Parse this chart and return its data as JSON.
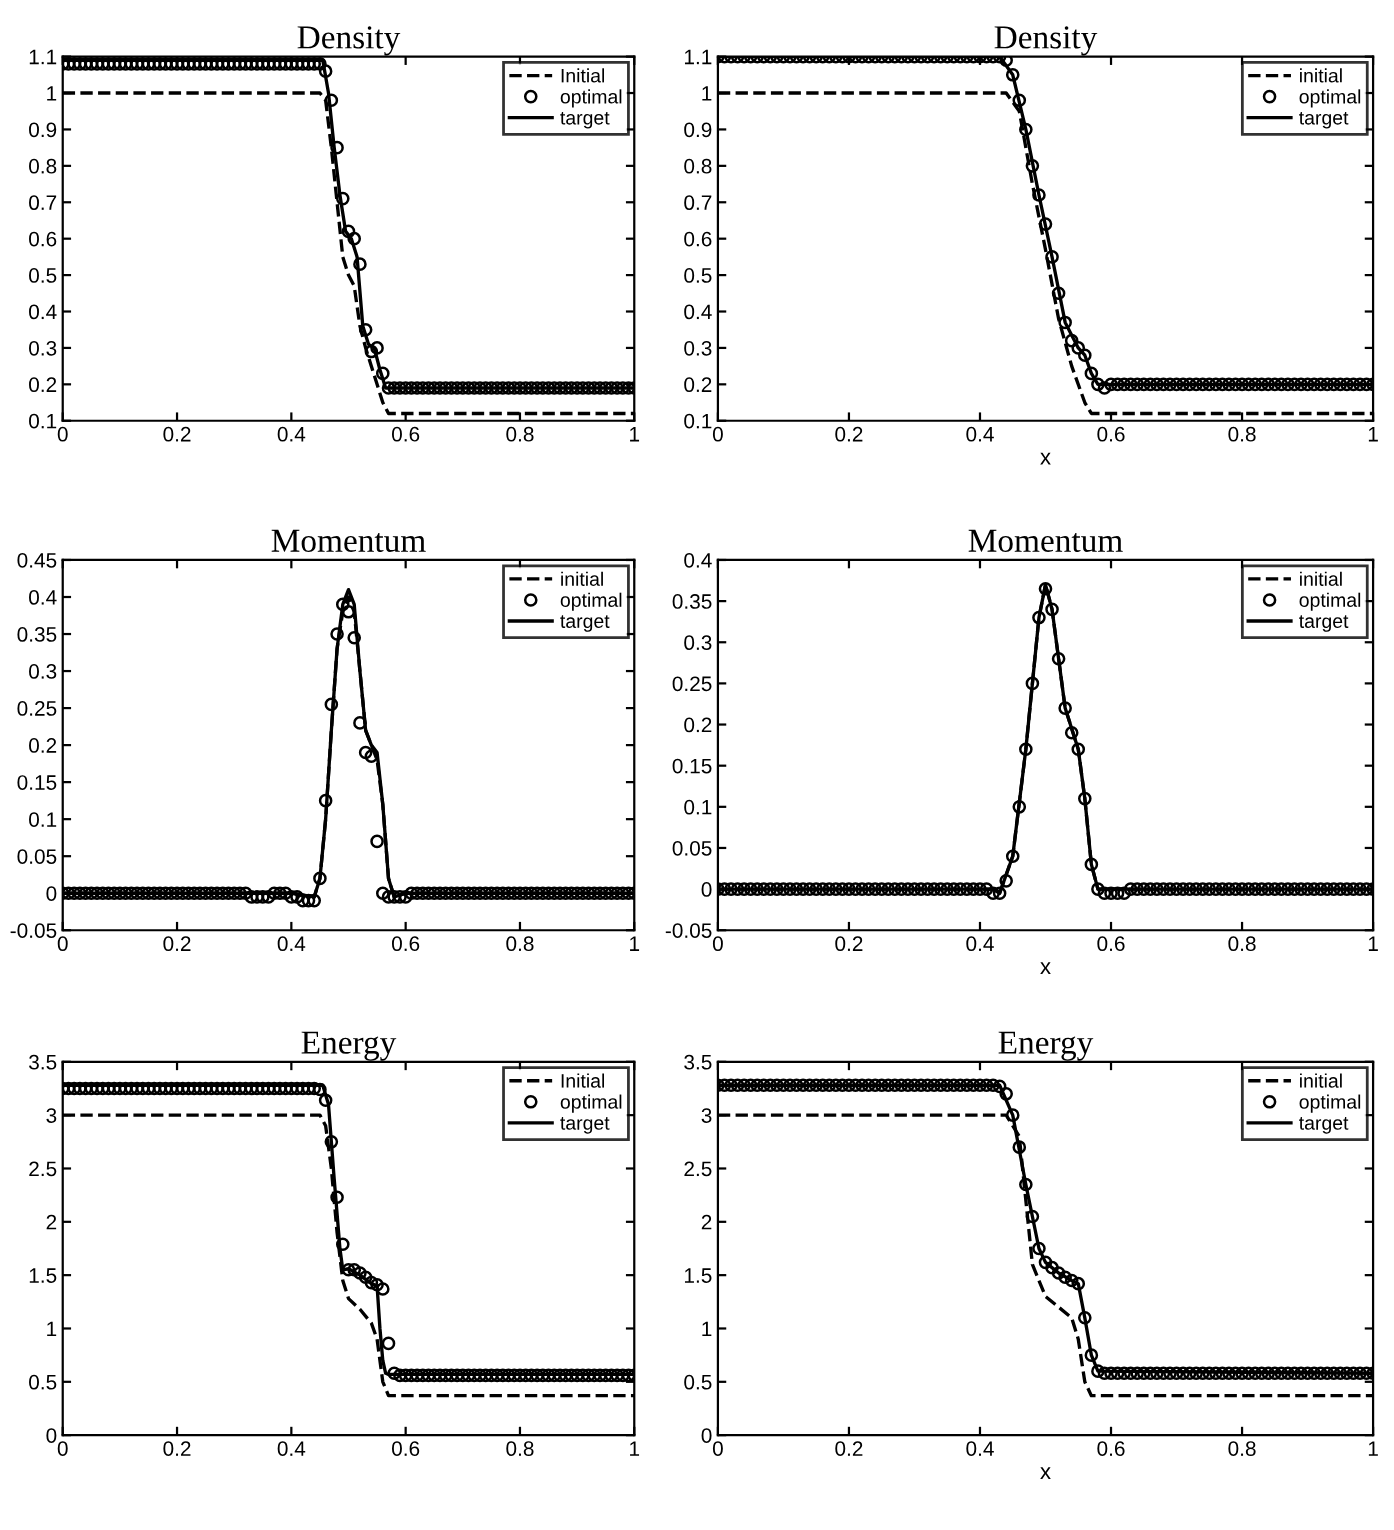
{
  "chart_data": [
    {
      "type": "line",
      "title": "Density",
      "xlim": [
        0,
        1
      ],
      "ylim": [
        0.1,
        1.1
      ],
      "xticks": [
        0,
        0.2,
        0.4,
        0.6,
        0.8,
        1
      ],
      "yticks": [
        0.1,
        0.2,
        0.3,
        0.4,
        0.5,
        0.6,
        0.7,
        0.8,
        0.9,
        1,
        1.1
      ],
      "legend": "top right",
      "grid": false,
      "x": [
        0,
        0.01,
        0.02,
        0.03,
        0.04,
        0.05,
        0.06,
        0.07,
        0.08,
        0.09,
        0.1,
        0.11,
        0.12,
        0.13,
        0.14,
        0.15,
        0.16,
        0.17,
        0.18,
        0.19,
        0.2,
        0.21,
        0.22,
        0.23,
        0.24,
        0.25,
        0.26,
        0.27,
        0.28,
        0.29,
        0.3,
        0.31,
        0.32,
        0.33,
        0.34,
        0.35,
        0.36,
        0.37,
        0.38,
        0.39,
        0.4,
        0.41,
        0.42,
        0.43,
        0.44,
        0.45,
        0.46,
        0.47,
        0.48,
        0.49,
        0.5,
        0.51,
        0.52,
        0.53,
        0.54,
        0.55,
        0.56,
        0.57,
        0.58,
        0.59,
        0.6,
        0.61,
        0.62,
        0.63,
        0.64,
        0.65,
        0.66,
        0.67,
        0.68,
        0.69,
        0.7,
        0.71,
        0.72,
        0.73,
        0.74,
        0.75,
        0.76,
        0.77,
        0.78,
        0.79,
        0.8,
        0.81,
        0.82,
        0.83,
        0.84,
        0.85,
        0.86,
        0.87,
        0.88,
        0.89,
        0.9,
        0.91,
        0.92,
        0.93,
        0.94,
        0.95,
        0.96,
        0.97,
        0.98,
        0.99,
        1
      ],
      "series": [
        {
          "name": "Initial",
          "color": "#000000",
          "line_style": "dashed",
          "x": [
            0,
            0.45,
            0.46,
            0.47,
            0.48,
            0.49,
            0.5,
            0.51,
            0.52,
            0.53,
            0.54,
            0.55,
            0.56,
            0.57,
            1
          ],
          "values": [
            1,
            1,
            0.98,
            0.85,
            0.7,
            0.55,
            0.5,
            0.47,
            0.36,
            0.3,
            0.25,
            0.2,
            0.15,
            0.12,
            0.12
          ]
        },
        {
          "name": "optimal",
          "color": "#000000",
          "type": "scatter",
          "marker": "circle",
          "values": [
            1.08,
            1.08,
            1.08,
            1.08,
            1.08,
            1.08,
            1.08,
            1.08,
            1.08,
            1.08,
            1.08,
            1.08,
            1.08,
            1.08,
            1.08,
            1.08,
            1.08,
            1.08,
            1.08,
            1.08,
            1.08,
            1.08,
            1.08,
            1.08,
            1.08,
            1.08,
            1.08,
            1.08,
            1.08,
            1.08,
            1.08,
            1.08,
            1.08,
            1.08,
            1.08,
            1.08,
            1.08,
            1.08,
            1.08,
            1.08,
            1.08,
            1.08,
            1.08,
            1.08,
            1.08,
            1.08,
            1.06,
            0.98,
            0.85,
            0.71,
            0.62,
            0.6,
            0.53,
            0.35,
            0.29,
            0.3,
            0.23,
            0.19,
            0.19,
            0.19,
            0.19,
            0.19,
            0.19,
            0.19,
            0.19,
            0.19,
            0.19,
            0.19,
            0.19,
            0.19,
            0.19,
            0.19,
            0.19,
            0.19,
            0.19,
            0.19,
            0.19,
            0.19,
            0.19,
            0.19,
            0.19,
            0.19,
            0.19,
            0.19,
            0.19,
            0.19,
            0.19,
            0.19,
            0.19,
            0.19,
            0.19,
            0.19,
            0.19,
            0.19,
            0.19,
            0.19,
            0.19,
            0.19,
            0.19,
            0.19,
            0.19
          ]
        },
        {
          "name": "target",
          "color": "#000000",
          "line_style": "solid",
          "x": [
            0,
            0.455,
            0.465,
            0.475,
            0.485,
            0.495,
            0.505,
            0.515,
            0.525,
            0.535,
            0.545,
            0.555,
            0.565,
            0.575,
            1
          ],
          "values": [
            1.09,
            1.09,
            1,
            0.85,
            0.72,
            0.62,
            0.6,
            0.55,
            0.36,
            0.31,
            0.3,
            0.24,
            0.19,
            0.19,
            0.19
          ]
        }
      ]
    },
    {
      "type": "line",
      "title": "Density",
      "xlabel": "x",
      "xlim": [
        0,
        1
      ],
      "ylim": [
        0.1,
        1.1
      ],
      "xticks": [
        0,
        0.2,
        0.4,
        0.6,
        0.8,
        1
      ],
      "yticks": [
        0.1,
        0.2,
        0.3,
        0.4,
        0.5,
        0.6,
        0.7,
        0.8,
        0.9,
        1,
        1.1
      ],
      "legend": "top right",
      "grid": false,
      "x": [
        0,
        0.01,
        0.02,
        0.03,
        0.04,
        0.05,
        0.06,
        0.07,
        0.08,
        0.09,
        0.1,
        0.11,
        0.12,
        0.13,
        0.14,
        0.15,
        0.16,
        0.17,
        0.18,
        0.19,
        0.2,
        0.21,
        0.22,
        0.23,
        0.24,
        0.25,
        0.26,
        0.27,
        0.28,
        0.29,
        0.3,
        0.31,
        0.32,
        0.33,
        0.34,
        0.35,
        0.36,
        0.37,
        0.38,
        0.39,
        0.4,
        0.41,
        0.42,
        0.43,
        0.44,
        0.45,
        0.46,
        0.47,
        0.48,
        0.49,
        0.5,
        0.51,
        0.52,
        0.53,
        0.54,
        0.55,
        0.56,
        0.57,
        0.58,
        0.59,
        0.6,
        0.61,
        0.62,
        0.63,
        0.64,
        0.65,
        0.66,
        0.67,
        0.68,
        0.69,
        0.7,
        0.71,
        0.72,
        0.73,
        0.74,
        0.75,
        0.76,
        0.77,
        0.78,
        0.79,
        0.8,
        0.81,
        0.82,
        0.83,
        0.84,
        0.85,
        0.86,
        0.87,
        0.88,
        0.89,
        0.9,
        0.91,
        0.92,
        0.93,
        0.94,
        0.95,
        0.96,
        0.97,
        0.98,
        0.99,
        1
      ],
      "series": [
        {
          "name": "initial",
          "color": "#000000",
          "line_style": "dashed",
          "x": [
            0,
            0.44,
            0.46,
            0.48,
            0.5,
            0.52,
            0.54,
            0.56,
            0.57,
            1
          ],
          "values": [
            1,
            1,
            0.95,
            0.75,
            0.57,
            0.38,
            0.25,
            0.15,
            0.12,
            0.12
          ]
        },
        {
          "name": "optimal",
          "color": "#000000",
          "type": "scatter",
          "marker": "circle",
          "values": [
            1.1,
            1.1,
            1.1,
            1.1,
            1.1,
            1.1,
            1.1,
            1.1,
            1.1,
            1.1,
            1.1,
            1.1,
            1.1,
            1.1,
            1.1,
            1.1,
            1.1,
            1.1,
            1.1,
            1.1,
            1.1,
            1.1,
            1.1,
            1.1,
            1.1,
            1.1,
            1.1,
            1.1,
            1.1,
            1.1,
            1.1,
            1.1,
            1.1,
            1.1,
            1.1,
            1.1,
            1.1,
            1.1,
            1.1,
            1.1,
            1.1,
            1.1,
            1.1,
            1.1,
            1.09,
            1.05,
            0.98,
            0.9,
            0.8,
            0.72,
            0.64,
            0.55,
            0.45,
            0.37,
            0.32,
            0.3,
            0.28,
            0.23,
            0.2,
            0.19,
            0.2,
            0.2,
            0.2,
            0.2,
            0.2,
            0.2,
            0.2,
            0.2,
            0.2,
            0.2,
            0.2,
            0.2,
            0.2,
            0.2,
            0.2,
            0.2,
            0.2,
            0.2,
            0.2,
            0.2,
            0.2,
            0.2,
            0.2,
            0.2,
            0.2,
            0.2,
            0.2,
            0.2,
            0.2,
            0.2,
            0.2,
            0.2,
            0.2,
            0.2,
            0.2,
            0.2,
            0.2,
            0.2,
            0.2,
            0.2,
            0.2
          ]
        },
        {
          "name": "target",
          "color": "#000000",
          "line_style": "solid",
          "x": [
            0,
            0.43,
            0.45,
            0.47,
            0.49,
            0.51,
            0.53,
            0.55,
            0.56,
            0.57,
            0.58,
            0.6,
            1
          ],
          "values": [
            1.1,
            1.1,
            1.05,
            0.9,
            0.72,
            0.55,
            0.37,
            0.3,
            0.28,
            0.23,
            0.2,
            0.2,
            0.2
          ]
        }
      ]
    },
    {
      "type": "line",
      "title": "Momentum",
      "xlim": [
        0,
        1
      ],
      "ylim": [
        -0.05,
        0.45
      ],
      "xticks": [
        0,
        0.2,
        0.4,
        0.6,
        0.8,
        1
      ],
      "yticks": [
        -0.05,
        0,
        0.05,
        0.1,
        0.15,
        0.2,
        0.25,
        0.3,
        0.35,
        0.4,
        0.45
      ],
      "legend": "top right",
      "grid": false,
      "x": [
        0,
        0.01,
        0.02,
        0.03,
        0.04,
        0.05,
        0.06,
        0.07,
        0.08,
        0.09,
        0.1,
        0.11,
        0.12,
        0.13,
        0.14,
        0.15,
        0.16,
        0.17,
        0.18,
        0.19,
        0.2,
        0.21,
        0.22,
        0.23,
        0.24,
        0.25,
        0.26,
        0.27,
        0.28,
        0.29,
        0.3,
        0.31,
        0.32,
        0.33,
        0.34,
        0.35,
        0.36,
        0.37,
        0.38,
        0.39,
        0.4,
        0.41,
        0.42,
        0.43,
        0.44,
        0.45,
        0.46,
        0.47,
        0.48,
        0.49,
        0.5,
        0.51,
        0.52,
        0.53,
        0.54,
        0.55,
        0.56,
        0.57,
        0.58,
        0.59,
        0.6,
        0.61,
        0.62,
        0.63,
        0.64,
        0.65,
        0.66,
        0.67,
        0.68,
        0.69,
        0.7,
        0.71,
        0.72,
        0.73,
        0.74,
        0.75,
        0.76,
        0.77,
        0.78,
        0.79,
        0.8,
        0.81,
        0.82,
        0.83,
        0.84,
        0.85,
        0.86,
        0.87,
        0.88,
        0.89,
        0.9,
        0.91,
        0.92,
        0.93,
        0.94,
        0.95,
        0.96,
        0.97,
        0.98,
        0.99,
        1
      ],
      "series": [
        {
          "name": "initial",
          "color": "#000000",
          "line_style": "dashed",
          "x": [
            0,
            0.4,
            0.44,
            0.45,
            0.46,
            0.47,
            0.48,
            0.49,
            0.5,
            0.51,
            0.52,
            0.53,
            0.54,
            0.55,
            0.56,
            0.57,
            0.58,
            0.6,
            1
          ],
          "values": [
            0,
            0,
            -0.005,
            0.02,
            0.1,
            0.22,
            0.33,
            0.38,
            0.4,
            0.38,
            0.3,
            0.22,
            0.2,
            0.18,
            0.12,
            0.02,
            -0.005,
            0,
            0
          ]
        },
        {
          "name": "optimal",
          "color": "#000000",
          "type": "scatter",
          "marker": "circle",
          "values": [
            0,
            0,
            0,
            0,
            0,
            0,
            0,
            0,
            0,
            0,
            0,
            0,
            0,
            0,
            0,
            0,
            0,
            0,
            0,
            0,
            0,
            0,
            0,
            0,
            0,
            0,
            0,
            0,
            0,
            0,
            0,
            0,
            0,
            -0.005,
            -0.005,
            -0.005,
            -0.005,
            0,
            0,
            0,
            -0.005,
            -0.005,
            -0.01,
            -0.01,
            -0.01,
            0.02,
            0.125,
            0.255,
            0.35,
            0.39,
            0.38,
            0.345,
            0.23,
            0.19,
            0.185,
            0.07,
            0,
            -0.005,
            -0.005,
            -0.005,
            -0.005,
            0,
            0,
            0,
            0,
            0,
            0,
            0,
            0,
            0,
            0,
            0,
            0,
            0,
            0,
            0,
            0,
            0,
            0,
            0,
            0,
            0,
            0,
            0,
            0,
            0,
            0,
            0,
            0,
            0,
            0,
            0,
            0,
            0,
            0,
            0,
            0,
            0,
            0,
            0,
            0
          ]
        },
        {
          "name": "target",
          "color": "#000000",
          "line_style": "solid",
          "x": [
            0,
            0.4,
            0.44,
            0.45,
            0.46,
            0.47,
            0.48,
            0.49,
            0.5,
            0.51,
            0.52,
            0.53,
            0.54,
            0.55,
            0.56,
            0.57,
            0.58,
            0.6,
            1
          ],
          "values": [
            0,
            0,
            -0.005,
            0.02,
            0.1,
            0.22,
            0.33,
            0.39,
            0.41,
            0.39,
            0.3,
            0.22,
            0.2,
            0.19,
            0.12,
            0.02,
            -0.005,
            0,
            0
          ]
        }
      ]
    },
    {
      "type": "line",
      "title": "Momentum",
      "xlabel": "x",
      "xlim": [
        0,
        1
      ],
      "ylim": [
        -0.05,
        0.4
      ],
      "xticks": [
        0,
        0.2,
        0.4,
        0.6,
        0.8,
        1
      ],
      "yticks": [
        -0.05,
        0,
        0.05,
        0.1,
        0.15,
        0.2,
        0.25,
        0.3,
        0.35,
        0.4
      ],
      "legend": "top right",
      "grid": false,
      "x": [
        0,
        0.01,
        0.02,
        0.03,
        0.04,
        0.05,
        0.06,
        0.07,
        0.08,
        0.09,
        0.1,
        0.11,
        0.12,
        0.13,
        0.14,
        0.15,
        0.16,
        0.17,
        0.18,
        0.19,
        0.2,
        0.21,
        0.22,
        0.23,
        0.24,
        0.25,
        0.26,
        0.27,
        0.28,
        0.29,
        0.3,
        0.31,
        0.32,
        0.33,
        0.34,
        0.35,
        0.36,
        0.37,
        0.38,
        0.39,
        0.4,
        0.41,
        0.42,
        0.43,
        0.44,
        0.45,
        0.46,
        0.47,
        0.48,
        0.49,
        0.5,
        0.51,
        0.52,
        0.53,
        0.54,
        0.55,
        0.56,
        0.57,
        0.58,
        0.59,
        0.6,
        0.61,
        0.62,
        0.63,
        0.64,
        0.65,
        0.66,
        0.67,
        0.68,
        0.69,
        0.7,
        0.71,
        0.72,
        0.73,
        0.74,
        0.75,
        0.76,
        0.77,
        0.78,
        0.79,
        0.8,
        0.81,
        0.82,
        0.83,
        0.84,
        0.85,
        0.86,
        0.87,
        0.88,
        0.89,
        0.9,
        0.91,
        0.92,
        0.93,
        0.94,
        0.95,
        0.96,
        0.97,
        0.98,
        0.99,
        1
      ],
      "series": [
        {
          "name": "initial",
          "color": "#000000",
          "line_style": "dashed",
          "x": [
            0,
            0.42,
            0.43,
            0.45,
            0.47,
            0.49,
            0.5,
            0.51,
            0.53,
            0.55,
            0.56,
            0.57,
            0.58,
            0.6,
            1
          ],
          "values": [
            0,
            0,
            -0.005,
            0.04,
            0.17,
            0.33,
            0.37,
            0.34,
            0.22,
            0.17,
            0.11,
            0.03,
            0,
            0,
            0
          ]
        },
        {
          "name": "optimal",
          "color": "#000000",
          "type": "scatter",
          "marker": "circle",
          "values": [
            0,
            0,
            0,
            0,
            0,
            0,
            0,
            0,
            0,
            0,
            0,
            0,
            0,
            0,
            0,
            0,
            0,
            0,
            0,
            0,
            0,
            0,
            0,
            0,
            0,
            0,
            0,
            0,
            0,
            0,
            0,
            0,
            0,
            0,
            0,
            0,
            0,
            0,
            0,
            0,
            0,
            0,
            -0.005,
            -0.005,
            0.01,
            0.04,
            0.1,
            0.17,
            0.25,
            0.33,
            0.365,
            0.34,
            0.28,
            0.22,
            0.19,
            0.17,
            0.11,
            0.03,
            0,
            -0.005,
            -0.005,
            -0.005,
            -0.005,
            0,
            0,
            0,
            0,
            0,
            0,
            0,
            0,
            0,
            0,
            0,
            0,
            0,
            0,
            0,
            0,
            0,
            0,
            0,
            0,
            0,
            0,
            0,
            0,
            0,
            0,
            0,
            0,
            0,
            0,
            0,
            0,
            0,
            0,
            0,
            0,
            0,
            0
          ]
        },
        {
          "name": "target",
          "color": "#000000",
          "line_style": "solid",
          "x": [
            0,
            0.42,
            0.43,
            0.45,
            0.47,
            0.49,
            0.5,
            0.51,
            0.53,
            0.55,
            0.56,
            0.57,
            0.58,
            0.6,
            1
          ],
          "values": [
            0,
            0,
            -0.005,
            0.04,
            0.17,
            0.33,
            0.37,
            0.34,
            0.22,
            0.17,
            0.11,
            0.03,
            0,
            0,
            0
          ]
        }
      ]
    },
    {
      "type": "line",
      "title": "Energy",
      "xlim": [
        0,
        1
      ],
      "ylim": [
        0,
        3.5
      ],
      "xticks": [
        0,
        0.2,
        0.4,
        0.6,
        0.8,
        1
      ],
      "yticks": [
        0,
        0.5,
        1,
        1.5,
        2,
        2.5,
        3,
        3.5
      ],
      "legend": "top right",
      "grid": false,
      "x": [
        0,
        0.01,
        0.02,
        0.03,
        0.04,
        0.05,
        0.06,
        0.07,
        0.08,
        0.09,
        0.1,
        0.11,
        0.12,
        0.13,
        0.14,
        0.15,
        0.16,
        0.17,
        0.18,
        0.19,
        0.2,
        0.21,
        0.22,
        0.23,
        0.24,
        0.25,
        0.26,
        0.27,
        0.28,
        0.29,
        0.3,
        0.31,
        0.32,
        0.33,
        0.34,
        0.35,
        0.36,
        0.37,
        0.38,
        0.39,
        0.4,
        0.41,
        0.42,
        0.43,
        0.44,
        0.45,
        0.46,
        0.47,
        0.48,
        0.49,
        0.5,
        0.51,
        0.52,
        0.53,
        0.54,
        0.55,
        0.56,
        0.57,
        0.58,
        0.59,
        0.6,
        0.61,
        0.62,
        0.63,
        0.64,
        0.65,
        0.66,
        0.67,
        0.68,
        0.69,
        0.7,
        0.71,
        0.72,
        0.73,
        0.74,
        0.75,
        0.76,
        0.77,
        0.78,
        0.79,
        0.8,
        0.81,
        0.82,
        0.83,
        0.84,
        0.85,
        0.86,
        0.87,
        0.88,
        0.89,
        0.9,
        0.91,
        0.92,
        0.93,
        0.94,
        0.95,
        0.96,
        0.97,
        0.98,
        0.99,
        1
      ],
      "series": [
        {
          "name": "Initial",
          "color": "#000000",
          "line_style": "dashed",
          "x": [
            0,
            0.45,
            0.46,
            0.47,
            0.48,
            0.49,
            0.5,
            0.52,
            0.54,
            0.55,
            0.56,
            0.57,
            1
          ],
          "values": [
            3,
            3,
            2.9,
            2.5,
            1.9,
            1.45,
            1.28,
            1.18,
            1.05,
            0.9,
            0.5,
            0.37,
            0.37
          ]
        },
        {
          "name": "optimal",
          "color": "#000000",
          "type": "scatter",
          "marker": "circle",
          "values": [
            3.25,
            3.25,
            3.25,
            3.25,
            3.25,
            3.25,
            3.25,
            3.25,
            3.25,
            3.25,
            3.25,
            3.25,
            3.25,
            3.25,
            3.25,
            3.25,
            3.25,
            3.25,
            3.25,
            3.25,
            3.25,
            3.25,
            3.25,
            3.25,
            3.25,
            3.25,
            3.25,
            3.25,
            3.25,
            3.25,
            3.25,
            3.25,
            3.25,
            3.25,
            3.25,
            3.25,
            3.25,
            3.25,
            3.25,
            3.25,
            3.25,
            3.25,
            3.25,
            3.25,
            3.25,
            3.24,
            3.14,
            2.75,
            2.23,
            1.79,
            1.55,
            1.55,
            1.52,
            1.48,
            1.43,
            1.41,
            1.37,
            0.86,
            0.58,
            0.56,
            0.56,
            0.56,
            0.56,
            0.56,
            0.56,
            0.56,
            0.56,
            0.56,
            0.56,
            0.56,
            0.56,
            0.56,
            0.56,
            0.56,
            0.56,
            0.56,
            0.56,
            0.56,
            0.56,
            0.56,
            0.56,
            0.56,
            0.56,
            0.56,
            0.56,
            0.56,
            0.56,
            0.56,
            0.56,
            0.56,
            0.56,
            0.56,
            0.56,
            0.56,
            0.56,
            0.56,
            0.56,
            0.56,
            0.56,
            0.56,
            0.56
          ]
        },
        {
          "name": "target",
          "color": "#000000",
          "line_style": "solid",
          "x": [
            0,
            0.455,
            0.465,
            0.475,
            0.485,
            0.49,
            0.5,
            0.52,
            0.54,
            0.55,
            0.555,
            0.56,
            0.565,
            0.57,
            1
          ],
          "values": [
            3.28,
            3.28,
            3.1,
            2.4,
            1.75,
            1.55,
            1.56,
            1.5,
            1.42,
            1.4,
            1,
            0.7,
            0.58,
            0.57,
            0.57
          ]
        }
      ]
    },
    {
      "type": "line",
      "title": "Energy",
      "xlabel": "x",
      "xlim": [
        0,
        1
      ],
      "ylim": [
        0,
        3.5
      ],
      "xticks": [
        0,
        0.2,
        0.4,
        0.6,
        0.8,
        1
      ],
      "yticks": [
        0,
        0.5,
        1,
        1.5,
        2,
        2.5,
        3,
        3.5
      ],
      "legend": "top right",
      "grid": false,
      "x": [
        0,
        0.01,
        0.02,
        0.03,
        0.04,
        0.05,
        0.06,
        0.07,
        0.08,
        0.09,
        0.1,
        0.11,
        0.12,
        0.13,
        0.14,
        0.15,
        0.16,
        0.17,
        0.18,
        0.19,
        0.2,
        0.21,
        0.22,
        0.23,
        0.24,
        0.25,
        0.26,
        0.27,
        0.28,
        0.29,
        0.3,
        0.31,
        0.32,
        0.33,
        0.34,
        0.35,
        0.36,
        0.37,
        0.38,
        0.39,
        0.4,
        0.41,
        0.42,
        0.43,
        0.44,
        0.45,
        0.46,
        0.47,
        0.48,
        0.49,
        0.5,
        0.51,
        0.52,
        0.53,
        0.54,
        0.55,
        0.56,
        0.57,
        0.58,
        0.59,
        0.6,
        0.61,
        0.62,
        0.63,
        0.64,
        0.65,
        0.66,
        0.67,
        0.68,
        0.69,
        0.7,
        0.71,
        0.72,
        0.73,
        0.74,
        0.75,
        0.76,
        0.77,
        0.78,
        0.79,
        0.8,
        0.81,
        0.82,
        0.83,
        0.84,
        0.85,
        0.86,
        0.87,
        0.88,
        0.89,
        0.9,
        0.91,
        0.92,
        0.93,
        0.94,
        0.95,
        0.96,
        0.97,
        0.98,
        0.99,
        1
      ],
      "series": [
        {
          "name": "initial",
          "color": "#000000",
          "line_style": "dashed",
          "x": [
            0,
            0.44,
            0.46,
            0.48,
            0.5,
            0.52,
            0.54,
            0.55,
            0.56,
            0.57,
            1
          ],
          "values": [
            3,
            3,
            2.8,
            1.6,
            1.3,
            1.2,
            1.1,
            0.9,
            0.5,
            0.37,
            0.37
          ]
        },
        {
          "name": "optimal",
          "color": "#000000",
          "type": "scatter",
          "marker": "circle",
          "values": [
            3.28,
            3.28,
            3.28,
            3.28,
            3.28,
            3.28,
            3.28,
            3.28,
            3.28,
            3.28,
            3.28,
            3.28,
            3.28,
            3.28,
            3.28,
            3.28,
            3.28,
            3.28,
            3.28,
            3.28,
            3.28,
            3.28,
            3.28,
            3.28,
            3.28,
            3.28,
            3.28,
            3.28,
            3.28,
            3.28,
            3.28,
            3.28,
            3.28,
            3.28,
            3.28,
            3.28,
            3.28,
            3.28,
            3.28,
            3.28,
            3.28,
            3.28,
            3.28,
            3.27,
            3.2,
            3,
            2.7,
            2.35,
            2.05,
            1.75,
            1.62,
            1.57,
            1.52,
            1.48,
            1.45,
            1.42,
            1.1,
            0.75,
            0.6,
            0.58,
            0.58,
            0.58,
            0.58,
            0.58,
            0.58,
            0.58,
            0.58,
            0.58,
            0.58,
            0.58,
            0.58,
            0.58,
            0.58,
            0.58,
            0.58,
            0.58,
            0.58,
            0.58,
            0.58,
            0.58,
            0.58,
            0.58,
            0.58,
            0.58,
            0.58,
            0.58,
            0.58,
            0.58,
            0.58,
            0.58,
            0.58,
            0.58,
            0.58,
            0.58,
            0.58,
            0.58,
            0.58,
            0.58,
            0.58,
            0.58,
            0.58
          ]
        },
        {
          "name": "target",
          "color": "#000000",
          "line_style": "solid",
          "x": [
            0,
            0.43,
            0.45,
            0.47,
            0.49,
            0.5,
            0.52,
            0.54,
            0.55,
            0.56,
            0.57,
            0.58,
            1
          ],
          "values": [
            3.28,
            3.28,
            3,
            2.35,
            1.75,
            1.62,
            1.52,
            1.45,
            1.42,
            1.1,
            0.75,
            0.6,
            0.58
          ]
        }
      ]
    }
  ]
}
